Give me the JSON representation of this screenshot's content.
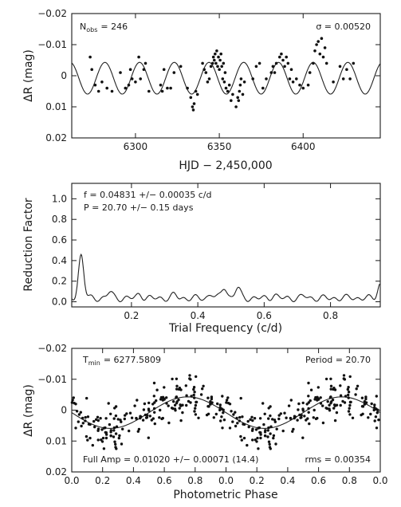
{
  "chart_data": [
    {
      "type": "scatter",
      "xlabel": "HJD − 2,450,000",
      "ylabel": "ΔR (mag)",
      "xlim": [
        6262,
        6446
      ],
      "ylim": [
        -0.02,
        0.02
      ],
      "y_inverted": true,
      "xticks": [
        6300,
        6350,
        6400
      ],
      "xtick_labels": [
        "6300",
        "6350",
        "6400"
      ],
      "yticks": [
        -0.02,
        -0.01,
        0,
        0.01,
        0.02
      ],
      "ytick_labels": [
        "−0.02",
        "−0.01",
        "0",
        "0.01",
        "0.02"
      ],
      "annotations": {
        "left": "N",
        "left_sub": "obs",
        "left_value": "=   246",
        "right": "σ = 0.00520"
      },
      "model": {
        "amplitude": 0.0051,
        "offset": 0.0008,
        "period": 20.7,
        "t0": 6277.5809
      },
      "points_mjd": [
        [
          6273,
          -0.006
        ],
        [
          6274,
          -0.002
        ],
        [
          6276,
          0.003
        ],
        [
          6278,
          0.005
        ],
        [
          6280,
          0.002
        ],
        [
          6283,
          0.004
        ],
        [
          6286,
          0.005
        ],
        [
          6291,
          -0.001
        ],
        [
          6294,
          0.004
        ],
        [
          6296,
          0.003
        ],
        [
          6297,
          -0.002
        ],
        [
          6298,
          0.001
        ],
        [
          6300,
          0.002
        ],
        [
          6302,
          -0.006
        ],
        [
          6303,
          0.001
        ],
        [
          6305,
          -0.002
        ],
        [
          6306,
          -0.004
        ],
        [
          6308,
          0.005
        ],
        [
          6315,
          0.003
        ],
        [
          6316,
          0.005
        ],
        [
          6317,
          -0.002
        ],
        [
          6319,
          0.004
        ],
        [
          6321,
          0.004
        ],
        [
          6323,
          -0.001
        ],
        [
          6327,
          -0.003
        ],
        [
          6331,
          0.004
        ],
        [
          6333,
          0.007
        ],
        [
          6334,
          0.01
        ],
        [
          6334.5,
          0.011
        ],
        [
          6335,
          0.009
        ],
        [
          6336,
          0.005
        ],
        [
          6337,
          0.006
        ],
        [
          6340,
          -0.004
        ],
        [
          6341,
          -0.002
        ],
        [
          6342,
          -0.001
        ],
        [
          6343,
          0.002
        ],
        [
          6344,
          0.001
        ],
        [
          6345,
          -0.003
        ],
        [
          6346,
          -0.004
        ],
        [
          6346.5,
          -0.006
        ],
        [
          6347,
          -0.005
        ],
        [
          6347.5,
          -0.007
        ],
        [
          6348,
          -0.004
        ],
        [
          6348.5,
          -0.008
        ],
        [
          6349,
          -0.003
        ],
        [
          6349.5,
          -0.006
        ],
        [
          6350,
          -0.002
        ],
        [
          6350.5,
          -0.005
        ],
        [
          6351,
          -0.007
        ],
        [
          6351.5,
          -0.003
        ],
        [
          6352,
          0.001
        ],
        [
          6352.5,
          -0.004
        ],
        [
          6353,
          0.002
        ],
        [
          6353.5,
          -0.001
        ],
        [
          6354,
          0.004
        ],
        [
          6355,
          0.005
        ],
        [
          6356,
          0.003
        ],
        [
          6357,
          0.008
        ],
        [
          6358,
          0.006
        ],
        [
          6360,
          0.01
        ],
        [
          6361,
          0.007
        ],
        [
          6361.5,
          0.008
        ],
        [
          6362,
          0.005
        ],
        [
          6362.5,
          0.003
        ],
        [
          6363,
          0.001
        ],
        [
          6364,
          0.006
        ],
        [
          6365,
          0.002
        ],
        [
          6370,
          0.001
        ],
        [
          6372,
          -0.003
        ],
        [
          6374,
          -0.004
        ],
        [
          6376,
          0.004
        ],
        [
          6378,
          0.001
        ],
        [
          6381,
          -0.001
        ],
        [
          6382,
          -0.003
        ],
        [
          6383,
          -0.001
        ],
        [
          6384,
          -0.004
        ],
        [
          6386,
          -0.006
        ],
        [
          6387,
          -0.007
        ],
        [
          6388,
          -0.005
        ],
        [
          6389,
          -0.003
        ],
        [
          6390,
          -0.006
        ],
        [
          6391,
          -0.004
        ],
        [
          6392,
          0.001
        ],
        [
          6393,
          -0.002
        ],
        [
          6394,
          0.002
        ],
        [
          6396,
          0.001
        ],
        [
          6398,
          0.003
        ],
        [
          6400,
          0.004
        ],
        [
          6403,
          0.003
        ],
        [
          6404,
          -0.001
        ],
        [
          6406,
          -0.004
        ],
        [
          6407,
          -0.008
        ],
        [
          6408,
          -0.01
        ],
        [
          6409,
          -0.011
        ],
        [
          6410,
          -0.007
        ],
        [
          6411,
          -0.012
        ],
        [
          6412,
          -0.006
        ],
        [
          6413,
          -0.009
        ],
        [
          6414,
          -0.004
        ],
        [
          6418,
          0.002
        ],
        [
          6422,
          -0.003
        ],
        [
          6424,
          0.001
        ],
        [
          6426,
          -0.002
        ],
        [
          6428,
          0.001
        ],
        [
          6430,
          -0.004
        ]
      ]
    },
    {
      "type": "line",
      "xlabel": "Trial Frequency (c/d)",
      "ylabel": "Reduction Factor",
      "xlim": [
        0.02,
        0.95
      ],
      "ylim": [
        -0.05,
        1.15
      ],
      "xticks": [
        0.2,
        0.4,
        0.6,
        0.8
      ],
      "xtick_labels": [
        "0.2",
        "0.4",
        "0.6",
        "0.8"
      ],
      "yticks": [
        0,
        0.2,
        0.4,
        0.6,
        0.8,
        1
      ],
      "ytick_labels": [
        "0.0",
        "0.2",
        "0.4",
        "0.6",
        "0.8",
        "1.0"
      ],
      "annotations": {
        "line1": "f  =  0.04831 +/− 0.00035 c/d",
        "line2": "P  = 20.70 +/−  0.15 days"
      },
      "peaks": [
        [
          0.04831,
          0.46
        ],
        [
          0.135,
          0.1
        ],
        [
          0.225,
          0.08
        ],
        [
          0.33,
          0.07
        ],
        [
          0.48,
          0.15
        ],
        [
          0.52,
          0.14
        ],
        [
          0.44,
          0.08
        ],
        [
          0.63,
          0.07
        ],
        [
          0.72,
          0.06
        ],
        [
          0.86,
          0.05
        ],
        [
          0.95,
          0.18
        ]
      ]
    },
    {
      "type": "scatter",
      "xlabel": "Photometric Phase",
      "ylabel": "ΔR (mag)",
      "xlim": [
        0,
        2
      ],
      "ylim": [
        -0.02,
        0.02
      ],
      "y_inverted": true,
      "xticks": [
        0,
        0.2,
        0.4,
        0.6,
        0.8,
        1.0,
        1.2,
        1.4,
        1.6,
        1.8,
        2.0
      ],
      "xtick_labels": [
        "0.0",
        "0.2",
        "0.4",
        "0.6",
        "0.8",
        "0.0",
        "0.2",
        "0.4",
        "0.6",
        "0.8",
        "0.0"
      ],
      "yticks": [
        -0.02,
        -0.01,
        0,
        0.01,
        0.02
      ],
      "ytick_labels": [
        "−0.02",
        "−0.01",
        "0",
        "0.01",
        "0.02"
      ],
      "annotations": {
        "tmin_label": "T",
        "tmin_sub": "min",
        "tmin_value": "=   6277.5809",
        "period": "Period = 20.70",
        "amp": "Full Amp = 0.01020 +/− 0.00071 (14.4)",
        "rms": "rms = 0.00354"
      },
      "model": {
        "amplitude": 0.0051,
        "offset": 0.0008,
        "phase_of_max": 0.75
      },
      "scatter_sigma": 0.00354
    }
  ]
}
